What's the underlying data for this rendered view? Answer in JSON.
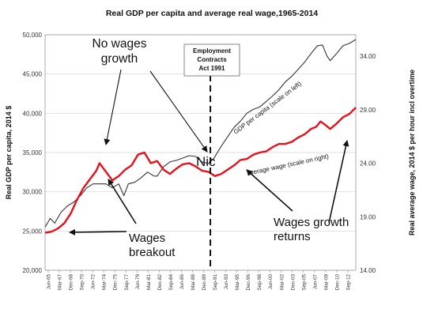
{
  "chart_data": {
    "type": "line",
    "title": "Real GDP per capita and average real wage,1965-2014",
    "ylabel_left": "Real GDP per capita, 2014 $",
    "ylabel_right": "Real average wage, 2014 $ per hour incl overtime",
    "yleft_lim": [
      20000,
      50000
    ],
    "yleft_ticks": [
      "20,000",
      "25,000",
      "30,000",
      "35,000",
      "40,000",
      "45,000",
      "50,000"
    ],
    "yright_lim": [
      14.0,
      36.0
    ],
    "yright_ticks": [
      "14.00",
      "19.00",
      "24.00",
      "29.00",
      "34.00"
    ],
    "x_range": [
      1965.5,
      2014.0
    ],
    "x_ticks": [
      "Jun-65",
      "Mar-67",
      "Dec-68",
      "Sep-70",
      "Jun-72",
      "Mar-74",
      "Dec-75",
      "Sep-77",
      "Jun-79",
      "Mar-81",
      "Dec-82",
      "Sep-84",
      "Jun-86",
      "Mar-88",
      "Dec-89",
      "Sep-91",
      "Jun-93",
      "Mar-95",
      "Dec-96",
      "Sep-98",
      "Jun-00",
      "Mar-02",
      "Dec-03",
      "Sep-05",
      "Jun-07",
      "Mar-09",
      "Dec-10",
      "Sep-12"
    ],
    "grid": "horizontal",
    "series": [
      {
        "name": "GDP per capita (scale on left)",
        "axis": "left",
        "color": "#333333",
        "x": [
          1965.5,
          1966.3,
          1967.0,
          1968.0,
          1969.0,
          1970.0,
          1971.0,
          1972.0,
          1973.0,
          1974.0,
          1975.0,
          1976.0,
          1977.0,
          1977.8,
          1978.5,
          1979.5,
          1980.5,
          1981.5,
          1982.5,
          1983.0,
          1984.0,
          1985.0,
          1986.0,
          1987.0,
          1988.0,
          1989.0,
          1990.0,
          1991.0,
          1991.8,
          1993.0,
          1994.0,
          1995.0,
          1996.0,
          1997.0,
          1998.0,
          1999.0,
          2000.0,
          2001.0,
          2002.0,
          2003.0,
          2004.0,
          2005.0,
          2006.0,
          2007.0,
          2008.0,
          2008.8,
          2009.5,
          2010.0,
          2011.0,
          2012.0,
          2013.0,
          2014.0
        ],
        "y": [
          25500,
          26600,
          26000,
          27400,
          28200,
          28700,
          29500,
          30500,
          31000,
          31000,
          31000,
          30500,
          31000,
          29500,
          31000,
          31200,
          31800,
          32500,
          32000,
          32000,
          33200,
          33800,
          34000,
          34300,
          34600,
          34500,
          33800,
          33600,
          34200,
          35800,
          37000,
          38200,
          39000,
          40000,
          40500,
          40800,
          41500,
          42200,
          43000,
          44000,
          44700,
          45600,
          46500,
          47600,
          48600,
          48700,
          47300,
          46700,
          47600,
          48600,
          48900,
          49400
        ]
      },
      {
        "name": "average wage (scale on right)",
        "axis": "right",
        "color": "#e8101a",
        "x": [
          1965.5,
          1966.5,
          1967.5,
          1968.5,
          1969.5,
          1970.5,
          1971.5,
          1972.5,
          1973.5,
          1974.0,
          1975.0,
          1976.0,
          1977.0,
          1978.0,
          1979.0,
          1980.0,
          1981.0,
          1982.0,
          1983.0,
          1984.0,
          1985.0,
          1986.0,
          1987.0,
          1988.0,
          1989.0,
          1990.0,
          1991.0,
          1992.0,
          1993.0,
          1994.0,
          1995.0,
          1996.0,
          1997.0,
          1998.0,
          1999.0,
          2000.0,
          2001.0,
          2002.0,
          2003.0,
          2004.0,
          2005.0,
          2006.0,
          2007.0,
          2007.8,
          2008.5,
          2009.2,
          2010.0,
          2011.0,
          2012.0,
          2013.0,
          2014.0
        ],
        "y": [
          17.5,
          17.6,
          17.9,
          18.4,
          19.3,
          20.6,
          21.7,
          22.5,
          23.3,
          24.0,
          23.2,
          22.4,
          22.8,
          23.4,
          23.8,
          24.8,
          25.0,
          24.0,
          24.2,
          23.4,
          23.0,
          23.5,
          23.9,
          24.0,
          23.7,
          23.3,
          23.2,
          22.8,
          23.0,
          23.4,
          23.8,
          24.3,
          24.4,
          24.8,
          25.0,
          25.1,
          25.5,
          25.8,
          25.8,
          26.0,
          26.4,
          26.7,
          27.2,
          27.4,
          27.9,
          27.6,
          27.2,
          27.7,
          28.3,
          28.6,
          29.2
        ]
      }
    ],
    "annotations": [
      {
        "text": "GDP per capita (scale on left)"
      },
      {
        "text": "average wage (scale on right)"
      },
      {
        "text": "No wages\ngrowth"
      },
      {
        "text": "Wages\nbreakout"
      },
      {
        "text": "Wages growth\nreturns"
      },
      {
        "text": "Employment\nContracts\nAct 1991"
      },
      {
        "text": "Nic"
      }
    ]
  }
}
